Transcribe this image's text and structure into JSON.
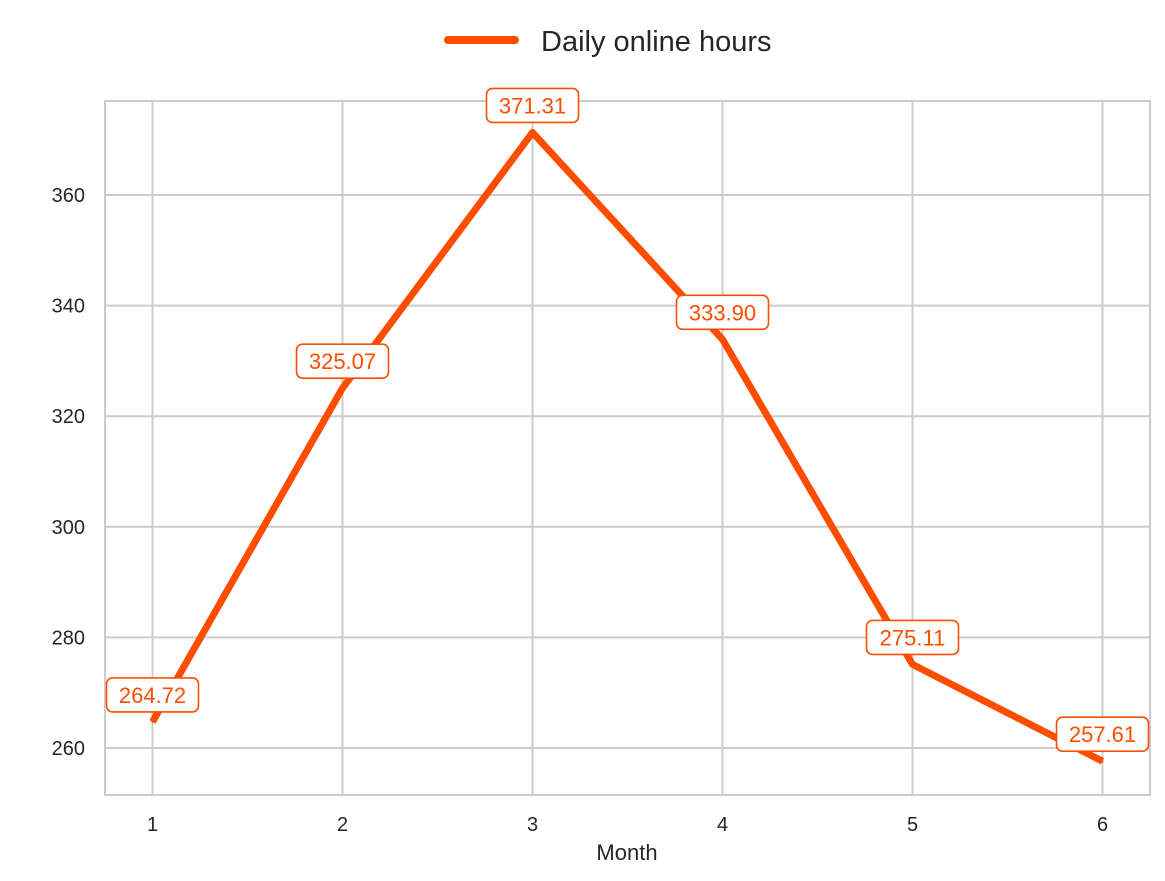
{
  "chart_data": {
    "type": "line",
    "title": "",
    "xlabel": "Month",
    "ylabel": "",
    "x": [
      1,
      2,
      3,
      4,
      5,
      6
    ],
    "xticks": [
      "1",
      "2",
      "3",
      "4",
      "5",
      "6"
    ],
    "yticks": [
      "260",
      "280",
      "300",
      "320",
      "340",
      "360"
    ],
    "ylim": [
      251.5,
      377
    ],
    "xlim": [
      0.75,
      6.25
    ],
    "grid": true,
    "legend_position": "top-center",
    "series": [
      {
        "name": "Daily online hours",
        "color": "#ff4d00",
        "values": [
          264.72,
          325.07,
          371.31,
          333.9,
          275.11,
          257.61
        ],
        "labels": [
          "264.72",
          "325.07",
          "371.31",
          "333.90",
          "275.11",
          "257.61"
        ]
      }
    ]
  }
}
